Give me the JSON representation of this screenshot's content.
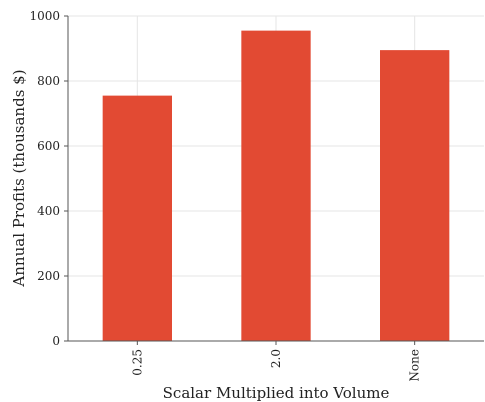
{
  "chart_data": {
    "type": "bar",
    "categories": [
      "0.25",
      "2.0",
      "None"
    ],
    "values": [
      755,
      955,
      895
    ],
    "xlabel": "Scalar Multiplied into Volume",
    "ylabel": "Annual Profits (thousands $)",
    "ylim": [
      0,
      1000
    ],
    "yticks": [
      0,
      200,
      400,
      600,
      800,
      1000
    ],
    "grid": true,
    "bar_color": "#e24a33",
    "grid_color": "#e5e5e5",
    "axis_color": "#555555"
  }
}
